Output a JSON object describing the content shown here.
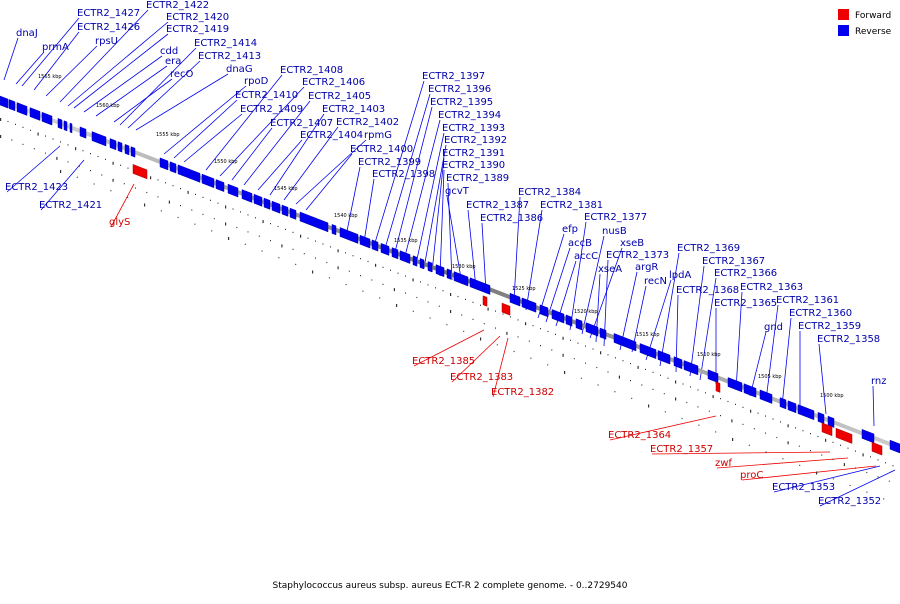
{
  "colors": {
    "forward": "#ee0000",
    "reverse": "#0000ee",
    "backbone": "#888888",
    "text_forward": "#cc0000",
    "text_reverse": "#0000aa"
  },
  "legend": {
    "forward_label": "Forward",
    "reverse_label": "Reverse"
  },
  "caption": "Staphylococcus aureus subsp. aureus ECT-R 2 complete genome. - 0..2729540",
  "ticks": [
    "1565 kbp",
    "1560 kbp",
    "1555 kbp",
    "1550 kbp",
    "1545 kbp",
    "1540 kbp",
    "1535 kbp",
    "1530 kbp",
    "1525 kbp",
    "1520 kbp",
    "1515 kbp",
    "1510 kbp",
    "1505 kbp",
    "1500 kbp"
  ],
  "reverse_labels": [
    "dnaJ",
    "prmA",
    "ECTR2_1427",
    "ECTR2_1426",
    "rpsU",
    "ECTR2_1422",
    "ECTR2_1420",
    "ECTR2_1419",
    "cdd",
    "era",
    "recO",
    "ECTR2_1414",
    "ECTR2_1413",
    "dnaG",
    "rpoD",
    "ECTR2_1410",
    "ECTR2_1409",
    "ECTR2_1408",
    "ECTR2_1406",
    "ECTR2_1407",
    "ECTR2_1405",
    "ECTR2_1404",
    "ECTR2_1403",
    "ECTR2_1402",
    "rpmG",
    "ECTR2_1400",
    "ECTR2_1399",
    "ECTR2_1398",
    "ECTR2_1397",
    "ECTR2_1396",
    "ECTR2_1395",
    "ECTR2_1394",
    "ECTR2_1393",
    "ECTR2_1392",
    "ECTR2_1391",
    "ECTR2_1390",
    "ECTR2_1389",
    "gcvT",
    "ECTR2_1387",
    "ECTR2_1386",
    "ECTR2_1384",
    "ECTR2_1381",
    "efp",
    "accB",
    "accC",
    "ECTR2_1377",
    "nusB",
    "xseB",
    "xseA",
    "ECTR2_1373",
    "argR",
    "recN",
    "lpdA",
    "ECTR2_1369",
    "ECTR2_1368",
    "ECTR2_1367",
    "ECTR2_1366",
    "ECTR2_1365",
    "ECTR2_1363",
    "gnd",
    "ECTR2_1361",
    "ECTR2_1360",
    "ECTR2_1359",
    "ECTR2_1358",
    "rnz",
    "ECTR2_1423",
    "ECTR2_1421",
    "ECTR2_1353",
    "ECTR2_1352"
  ],
  "forward_labels": [
    "glyS",
    "ECTR2_1385",
    "ECTR2_1383",
    "ECTR2_1382",
    "ECTR2_1364",
    "ECTR2_1357",
    "zwf",
    "proC"
  ]
}
